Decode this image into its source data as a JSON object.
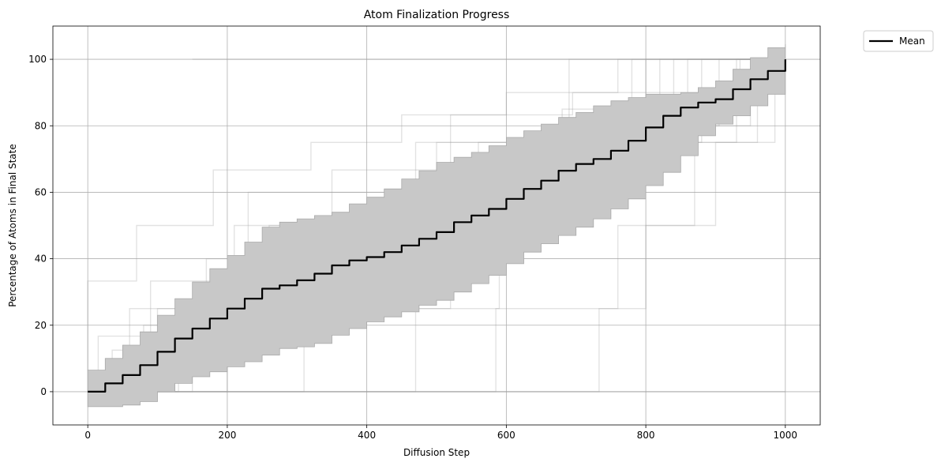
{
  "chart_data": {
    "type": "line",
    "title": "Atom Finalization Progress",
    "xlabel": "Diffusion Step",
    "ylabel": "Percentage of Atoms in Final State",
    "xlim": [
      -50,
      1050
    ],
    "ylim": [
      -10,
      110
    ],
    "xticks": [
      0,
      200,
      400,
      600,
      800,
      1000
    ],
    "yticks": [
      0,
      20,
      40,
      60,
      80,
      100
    ],
    "grid": true,
    "legend": {
      "placement": "outside-top-right",
      "entries": [
        "Mean"
      ]
    },
    "colors": {
      "mean": "#000000",
      "band": "#c8c8c8",
      "band_edge": "#a9a9a9",
      "trajectory": "#9e9e9e",
      "grid": "#b0b0b0"
    },
    "mean_series": {
      "name": "Mean",
      "x": [
        0,
        25,
        50,
        75,
        100,
        125,
        150,
        175,
        200,
        225,
        250,
        275,
        300,
        325,
        350,
        375,
        400,
        425,
        450,
        475,
        500,
        525,
        550,
        575,
        600,
        625,
        650,
        675,
        700,
        725,
        750,
        775,
        800,
        825,
        850,
        875,
        900,
        925,
        950,
        975,
        1000
      ],
      "y": [
        0,
        2.5,
        5,
        8,
        12,
        16,
        19,
        22,
        25,
        28,
        31,
        32,
        33.5,
        35.5,
        38,
        39.5,
        40.5,
        42,
        44,
        46,
        48,
        51,
        53,
        55,
        58,
        61,
        63.5,
        66.5,
        68.5,
        70,
        72.5,
        75.5,
        79.5,
        83,
        85.5,
        87,
        88,
        91,
        94,
        96.5,
        100
      ]
    },
    "band_upper": {
      "x": [
        0,
        25,
        50,
        75,
        100,
        125,
        150,
        175,
        200,
        225,
        250,
        275,
        300,
        325,
        350,
        375,
        400,
        425,
        450,
        475,
        500,
        525,
        550,
        575,
        600,
        625,
        650,
        675,
        700,
        725,
        750,
        775,
        800,
        825,
        850,
        875,
        900,
        925,
        950,
        975,
        1000
      ],
      "y": [
        6.5,
        10,
        14,
        18,
        23,
        28,
        33,
        37,
        41,
        45,
        49.5,
        51,
        52,
        53,
        54,
        56.5,
        58.5,
        61,
        64,
        66.5,
        69,
        70.5,
        72,
        74,
        76.5,
        78.5,
        80.5,
        82.5,
        84,
        86,
        87.5,
        88.5,
        89.5,
        89.5,
        90,
        91.5,
        93.5,
        97,
        100.5,
        103.5,
        104.5
      ]
    },
    "band_lower": {
      "x": [
        0,
        25,
        50,
        75,
        100,
        125,
        150,
        175,
        200,
        225,
        250,
        275,
        300,
        325,
        350,
        375,
        400,
        425,
        450,
        475,
        500,
        525,
        550,
        575,
        600,
        625,
        650,
        675,
        700,
        725,
        750,
        775,
        800,
        825,
        850,
        875,
        900,
        925,
        950,
        975,
        1000
      ],
      "y": [
        -4.5,
        -4.5,
        -4,
        -3,
        0,
        2.5,
        4.5,
        6,
        7.5,
        9,
        11,
        13,
        13.5,
        14.5,
        17,
        19,
        21,
        22.5,
        24,
        26,
        27.5,
        30,
        32.5,
        35,
        38.5,
        42,
        44.5,
        47,
        49.5,
        52,
        55,
        58,
        62,
        66,
        71,
        77,
        80.5,
        83,
        86,
        89.5,
        94.5
      ]
    },
    "trajectories": [
      {
        "x": [
          0,
          150,
          150,
          380,
          380,
          620,
          620,
          840,
          840,
          1000
        ],
        "y": [
          0,
          0,
          25,
          25,
          50,
          50,
          75,
          75,
          100,
          100
        ]
      },
      {
        "x": [
          0,
          60,
          60,
          260,
          260,
          470,
          470,
          690,
          690,
          1000
        ],
        "y": [
          0,
          0,
          25,
          25,
          50,
          50,
          75,
          75,
          100,
          100
        ]
      },
      {
        "x": [
          0,
          100,
          100,
          330,
          330,
          560,
          560,
          780,
          780,
          1000
        ],
        "y": [
          0,
          0,
          25,
          25,
          50,
          50,
          75,
          75,
          100,
          100
        ]
      },
      {
        "x": [
          0,
          200,
          200,
          420,
          420,
          610,
          610,
          860,
          860,
          1000
        ],
        "y": [
          0,
          0,
          25,
          25,
          50,
          50,
          75,
          75,
          100,
          100
        ]
      },
      {
        "x": [
          0,
          310,
          310,
          520,
          520,
          720,
          720,
          930,
          930,
          1000
        ],
        "y": [
          0,
          0,
          25,
          25,
          50,
          50,
          75,
          75,
          100,
          100
        ]
      },
      {
        "x": [
          0,
          470,
          470,
          590,
          590,
          700,
          700,
          880,
          880,
          1000
        ],
        "y": [
          0,
          0,
          25,
          25,
          50,
          50,
          75,
          75,
          100,
          100
        ]
      },
      {
        "x": [
          0,
          585,
          585,
          760,
          760,
          870,
          870,
          960,
          960,
          1000
        ],
        "y": [
          0,
          0,
          25,
          25,
          50,
          50,
          75,
          75,
          100,
          100
        ]
      },
      {
        "x": [
          0,
          733,
          733,
          800,
          800,
          900,
          900,
          985,
          985,
          1000
        ],
        "y": [
          0,
          0,
          25,
          25,
          50,
          50,
          75,
          75,
          100,
          100
        ]
      },
      {
        "x": [
          0,
          0,
          70,
          70,
          180,
          180,
          320,
          320,
          450,
          450,
          600,
          600,
          760,
          760,
          1000
        ],
        "y": [
          0,
          33.3,
          33.3,
          50,
          50,
          66.7,
          66.7,
          75,
          75,
          83.3,
          83.3,
          90,
          90,
          100,
          100
        ]
      },
      {
        "x": [
          0,
          35,
          35,
          140,
          140,
          265,
          265,
          395,
          395,
          530,
          530,
          650,
          650,
          800,
          800,
          1000
        ],
        "y": [
          0,
          0,
          12.5,
          12.5,
          25,
          25,
          37.5,
          37.5,
          50,
          50,
          62.5,
          62.5,
          75,
          75,
          100,
          100
        ]
      },
      {
        "x": [
          0,
          120,
          120,
          240,
          240,
          350,
          350,
          490,
          490,
          630,
          630,
          750,
          750,
          905,
          905,
          1000
        ],
        "y": [
          0,
          0,
          10,
          10,
          30,
          30,
          40,
          40,
          50,
          50,
          60,
          60,
          80,
          80,
          100,
          100
        ]
      },
      {
        "x": [
          0,
          15,
          15,
          90,
          90,
          210,
          210,
          350,
          350,
          520,
          520,
          695,
          695,
          935,
          935,
          1000
        ],
        "y": [
          0,
          0,
          16.7,
          16.7,
          33.3,
          33.3,
          50,
          50,
          66.7,
          66.7,
          83.3,
          83.3,
          90,
          90,
          100,
          100
        ]
      },
      {
        "x": [
          0,
          80,
          80,
          190,
          190,
          300,
          300,
          410,
          410,
          550,
          550,
          680,
          680,
          820,
          820,
          1000
        ],
        "y": [
          0,
          0,
          20,
          20,
          35,
          35,
          45,
          45,
          55,
          55,
          70,
          70,
          85,
          85,
          100,
          100
        ]
      },
      {
        "x": [
          0,
          130,
          130,
          170,
          170,
          230,
          230,
          500,
          500,
          660,
          660,
          950,
          950,
          1000
        ],
        "y": [
          0,
          0,
          20,
          20,
          40,
          40,
          60,
          60,
          75,
          75,
          80,
          80,
          100,
          100
        ]
      }
    ]
  }
}
